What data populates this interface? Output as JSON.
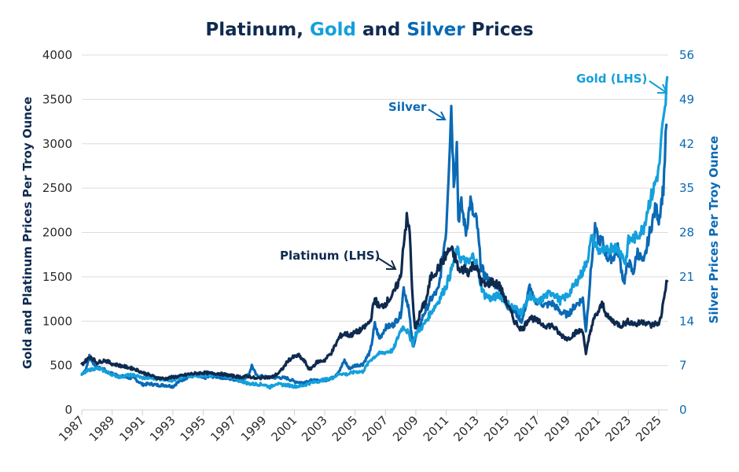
{
  "colors": {
    "platinum": "#0f2a4f",
    "gold": "#14a0dc",
    "silver": "#0a6ab5",
    "text_dark": "#0f2a4f",
    "tick_text": "#2b2b2b"
  },
  "chart_data": {
    "type": "line",
    "title": {
      "parts": [
        {
          "text": "Platinum, ",
          "color_key": "platinum"
        },
        {
          "text": "Gold",
          "color_key": "gold"
        },
        {
          "text": " and ",
          "color_key": "platinum"
        },
        {
          "text": "Silver",
          "color_key": "silver"
        },
        {
          "text": " Prices",
          "color_key": "platinum"
        }
      ],
      "full": "Platinum, Gold and Silver Prices"
    },
    "xlabel": "",
    "ylabel_left": "Gold and Platinum Prices Per Troy Ounce",
    "ylabel_right": "Silver Prices Per Troy Ounce",
    "xlim": [
      1987,
      2025.6
    ],
    "ylim_left": [
      0,
      4000
    ],
    "ylim_right": [
      0,
      56
    ],
    "grid": true,
    "x_ticks": [
      "1987",
      "1989",
      "1991",
      "1993",
      "1995",
      "1997",
      "1999",
      "2001",
      "2003",
      "2005",
      "2007",
      "2009",
      "2011",
      "2013",
      "2015",
      "2017",
      "2019",
      "2021",
      "2023",
      "2025"
    ],
    "y_ticks_left": [
      "0",
      "500",
      "1000",
      "1500",
      "2000",
      "2500",
      "3000",
      "3500",
      "4000"
    ],
    "y_ticks_right": [
      "0",
      "7",
      "14",
      "21",
      "28",
      "35",
      "42",
      "49",
      "56"
    ],
    "annotations": [
      {
        "text": "Silver",
        "series": "Silver",
        "color_key": "silver"
      },
      {
        "text": "Platinum (LHS)",
        "series": "Platinum",
        "color_key": "platinum"
      },
      {
        "text": "Gold (LHS)",
        "series": "Gold",
        "color_key": "gold"
      }
    ],
    "series": [
      {
        "name": "Silver",
        "axis": "right",
        "color_key": "silver",
        "x": [
          1987.0,
          1987.3,
          1987.5,
          1987.8,
          1988.0,
          1988.4,
          1988.8,
          1989.2,
          1989.6,
          1990.0,
          1990.5,
          1991.0,
          1991.5,
          1992.0,
          1992.5,
          1993.0,
          1993.3,
          1993.6,
          1994.0,
          1994.5,
          1995.0,
          1995.5,
          1996.0,
          1996.5,
          1997.0,
          1997.5,
          1998.0,
          1998.2,
          1998.5,
          1999.0,
          1999.5,
          2000.0,
          2000.5,
          2001.0,
          2001.5,
          2002.0,
          2002.5,
          2003.0,
          2003.5,
          2004.0,
          2004.3,
          2004.6,
          2005.0,
          2005.5,
          2006.0,
          2006.3,
          2006.6,
          2007.0,
          2007.5,
          2008.0,
          2008.2,
          2008.5,
          2008.8,
          2009.0,
          2009.5,
          2010.0,
          2010.5,
          2011.0,
          2011.2,
          2011.33,
          2011.5,
          2011.7,
          2011.8,
          2012.0,
          2012.3,
          2012.6,
          2012.8,
          2013.0,
          2013.3,
          2013.6,
          2014.0,
          2014.5,
          2015.0,
          2015.5,
          2016.0,
          2016.5,
          2016.8,
          2017.0,
          2017.5,
          2018.0,
          2018.5,
          2019.0,
          2019.5,
          2020.0,
          2020.2,
          2020.6,
          2020.8,
          2021.0,
          2021.3,
          2021.6,
          2022.0,
          2022.3,
          2022.7,
          2023.0,
          2023.3,
          2023.6,
          2024.0,
          2024.4,
          2024.8,
          2025.0,
          2025.3,
          2025.5
        ],
        "values": [
          5.6,
          6.5,
          8.5,
          7.2,
          6.6,
          6.5,
          5.8,
          5.6,
          5.3,
          5.1,
          4.9,
          4.0,
          4.1,
          3.9,
          3.9,
          3.7,
          4.3,
          4.7,
          5.2,
          5.4,
          5.0,
          5.3,
          5.2,
          5.0,
          4.8,
          4.6,
          5.6,
          7.0,
          5.4,
          5.2,
          5.1,
          5.1,
          5.0,
          4.5,
          4.3,
          4.6,
          4.6,
          4.7,
          5.0,
          6.3,
          7.8,
          6.5,
          7.0,
          7.2,
          9.2,
          13.5,
          11.2,
          13.0,
          13.4,
          15.0,
          19.2,
          16.5,
          10.0,
          11.5,
          15.0,
          17.5,
          19.0,
          28.5,
          40.0,
          48.0,
          36.0,
          42.0,
          30.0,
          32.5,
          28.0,
          33.0,
          30.5,
          30.0,
          22.5,
          21.0,
          20.0,
          19.5,
          16.5,
          15.5,
          14.0,
          19.5,
          17.0,
          17.2,
          16.5,
          16.8,
          15.5,
          15.0,
          16.5,
          17.5,
          12.5,
          24.0,
          28.5,
          27.0,
          26.5,
          24.0,
          24.0,
          25.5,
          20.0,
          23.5,
          21.5,
          25.0,
          23.0,
          28.0,
          32.0,
          30.0,
          35.0,
          45.0
        ]
      },
      {
        "name": "Gold",
        "axis": "left",
        "color_key": "gold",
        "x": [
          1987.0,
          1987.5,
          1988.0,
          1988.5,
          1989.0,
          1989.5,
          1990.0,
          1990.5,
          1991.0,
          1991.5,
          1992.0,
          1992.5,
          1993.0,
          1993.5,
          1994.0,
          1994.5,
          1995.0,
          1995.5,
          1996.0,
          1996.5,
          1997.0,
          1997.5,
          1998.0,
          1998.5,
          1999.0,
          1999.4,
          1999.8,
          2000.0,
          2000.5,
          2001.0,
          2001.5,
          2002.0,
          2002.5,
          2003.0,
          2003.5,
          2004.0,
          2004.5,
          2005.0,
          2005.5,
          2006.0,
          2006.5,
          2007.0,
          2007.5,
          2008.0,
          2008.2,
          2008.5,
          2008.8,
          2009.0,
          2009.5,
          2010.0,
          2010.5,
          2011.0,
          2011.3,
          2011.7,
          2012.0,
          2012.5,
          2012.8,
          2013.0,
          2013.3,
          2013.5,
          2014.0,
          2014.5,
          2015.0,
          2015.5,
          2016.0,
          2016.5,
          2017.0,
          2017.5,
          2018.0,
          2018.5,
          2019.0,
          2019.5,
          2020.0,
          2020.3,
          2020.6,
          2021.0,
          2021.5,
          2022.0,
          2022.5,
          2022.8,
          2023.0,
          2023.5,
          2024.0,
          2024.3,
          2024.6,
          2024.9,
          2025.0,
          2025.2,
          2025.4,
          2025.55
        ],
        "values": [
          400,
          450,
          470,
          440,
          400,
          370,
          390,
          390,
          360,
          360,
          350,
          345,
          330,
          360,
          385,
          385,
          385,
          385,
          400,
          385,
          350,
          325,
          295,
          290,
          285,
          255,
          300,
          285,
          280,
          265,
          270,
          300,
          320,
          340,
          360,
          410,
          400,
          430,
          430,
          560,
          630,
          650,
          670,
          900,
          940,
          870,
          740,
          860,
          950,
          1100,
          1230,
          1400,
          1550,
          1800,
          1700,
          1650,
          1750,
          1650,
          1400,
          1300,
          1250,
          1300,
          1200,
          1150,
          1100,
          1300,
          1200,
          1280,
          1330,
          1230,
          1290,
          1420,
          1560,
          1700,
          1950,
          1800,
          1780,
          1850,
          1780,
          1650,
          1900,
          1950,
          2050,
          2300,
          2450,
          2650,
          2700,
          3100,
          3350,
          3750
        ]
      },
      {
        "name": "Platinum",
        "axis": "left",
        "color_key": "platinum",
        "x": [
          1987.0,
          1987.3,
          1987.6,
          1988.0,
          1988.5,
          1989.0,
          1989.5,
          1990.0,
          1990.5,
          1991.0,
          1991.5,
          1992.0,
          1992.5,
          1993.0,
          1993.5,
          1994.0,
          1994.5,
          1995.0,
          1995.5,
          1996.0,
          1996.5,
          1997.0,
          1997.5,
          1998.0,
          1998.5,
          1999.0,
          1999.5,
          2000.0,
          2000.3,
          2000.6,
          2001.0,
          2001.3,
          2001.7,
          2002.0,
          2002.5,
          2003.0,
          2003.5,
          2004.0,
          2004.3,
          2004.7,
          2005.0,
          2005.5,
          2006.0,
          2006.3,
          2006.6,
          2007.0,
          2007.5,
          2008.0,
          2008.2,
          2008.4,
          2008.6,
          2008.8,
          2008.95,
          2009.3,
          2009.7,
          2010.0,
          2010.5,
          2011.0,
          2011.3,
          2011.6,
          2011.9,
          2012.2,
          2012.5,
          2012.8,
          2013.0,
          2013.3,
          2013.6,
          2014.0,
          2014.5,
          2015.0,
          2015.5,
          2016.0,
          2016.5,
          2017.0,
          2017.5,
          2018.0,
          2018.5,
          2019.0,
          2019.5,
          2020.0,
          2020.2,
          2020.5,
          2020.8,
          2021.0,
          2021.3,
          2021.6,
          2022.0,
          2022.5,
          2023.0,
          2023.5,
          2024.0,
          2024.5,
          2024.9,
          2025.0,
          2025.2,
          2025.4,
          2025.55
        ],
        "values": [
          510,
          560,
          600,
          530,
          560,
          520,
          500,
          480,
          460,
          420,
          390,
          360,
          350,
          370,
          380,
          400,
          410,
          420,
          410,
          410,
          395,
          380,
          370,
          380,
          350,
          370,
          365,
          420,
          480,
          560,
          600,
          610,
          540,
          450,
          540,
          560,
          660,
          830,
          860,
          840,
          870,
          910,
          1000,
          1250,
          1150,
          1200,
          1300,
          1500,
          1900,
          2150,
          2000,
          1200,
          900,
          1100,
          1250,
          1500,
          1600,
          1750,
          1820,
          1700,
          1550,
          1600,
          1550,
          1650,
          1600,
          1450,
          1400,
          1450,
          1400,
          1200,
          1000,
          900,
          1050,
          1000,
          950,
          950,
          850,
          800,
          870,
          900,
          620,
          900,
          1050,
          1100,
          1200,
          1050,
          1000,
          950,
          1000,
          960,
          1000,
          950,
          980,
          950,
          1100,
          1350,
          1450
        ]
      }
    ]
  }
}
